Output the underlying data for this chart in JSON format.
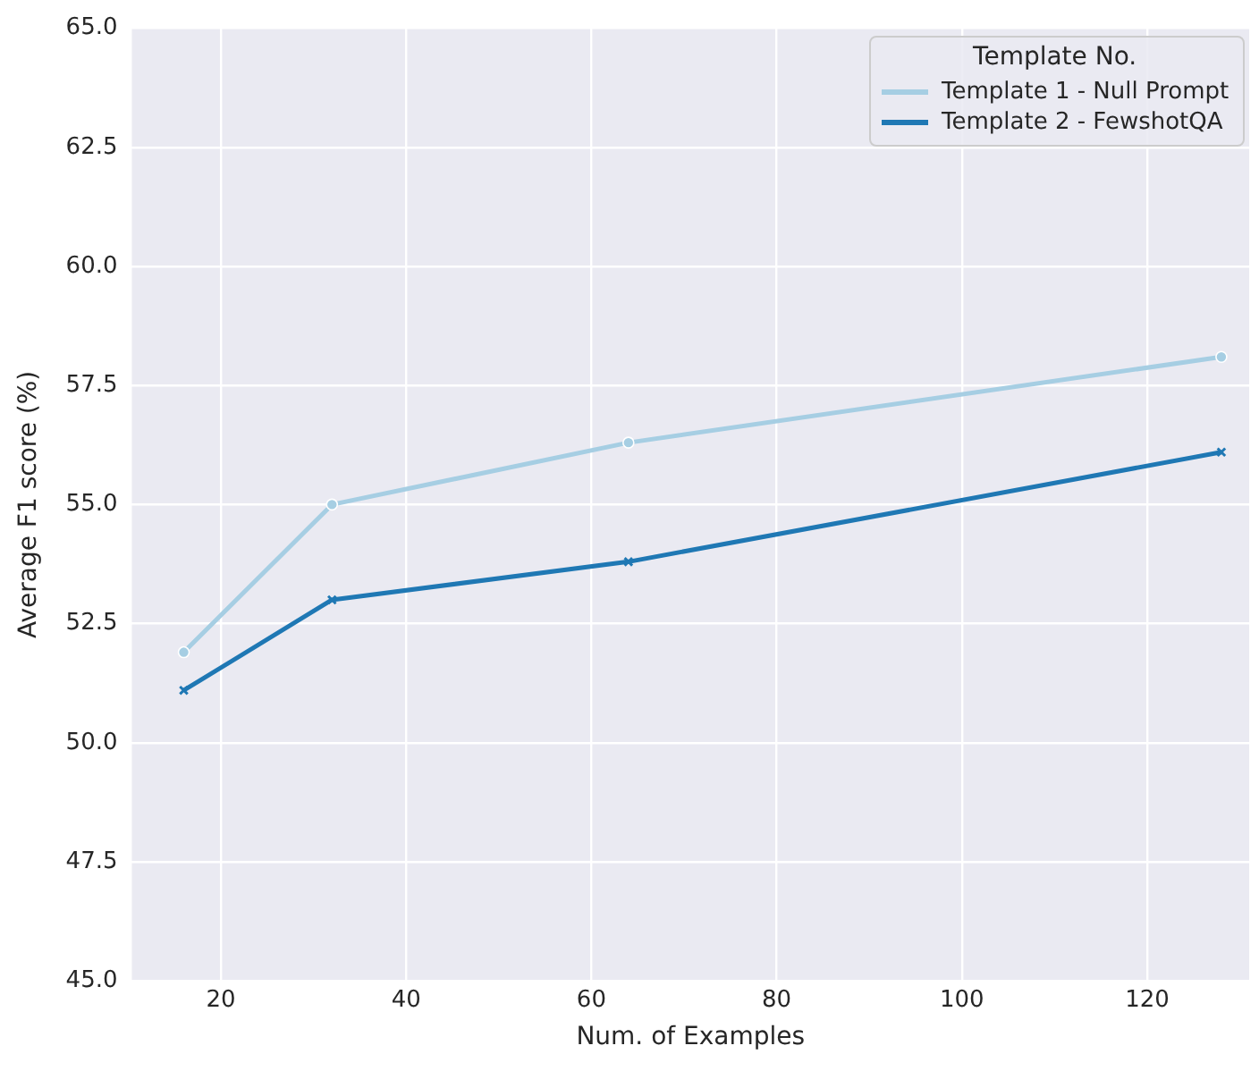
{
  "chart_data": {
    "type": "line",
    "xlabel": "Num. of Examples",
    "ylabel": "Average F1 score (%)",
    "legend_title": "Template No.",
    "x": [
      16,
      32,
      64,
      128
    ],
    "series": [
      {
        "name": "Template 1 - Null Prompt",
        "color": "#a6cee3",
        "marker": "circle",
        "values": [
          51.9,
          55.0,
          56.3,
          58.1
        ]
      },
      {
        "name": "Template 2 - FewshotQA",
        "color": "#1f78b4",
        "marker": "cross",
        "values": [
          51.1,
          53.0,
          53.8,
          56.1
        ]
      }
    ],
    "xlim": [
      10.4,
      131
    ],
    "xticks": [
      20,
      40,
      60,
      80,
      100,
      120
    ],
    "ylim": [
      45,
      65
    ],
    "yticks": [
      {
        "value": 45,
        "label": "45.0"
      },
      {
        "value": 47.5,
        "label": "47.5"
      },
      {
        "value": 50,
        "label": "50.0"
      },
      {
        "value": 52.5,
        "label": "52.5"
      },
      {
        "value": 55,
        "label": "55.0"
      },
      {
        "value": 57.5,
        "label": "57.5"
      },
      {
        "value": 60,
        "label": "60.0"
      },
      {
        "value": 62.5,
        "label": "62.5"
      },
      {
        "value": 65,
        "label": "65.0"
      }
    ],
    "grid": true,
    "legend": "top right",
    "line_style": "solid"
  }
}
